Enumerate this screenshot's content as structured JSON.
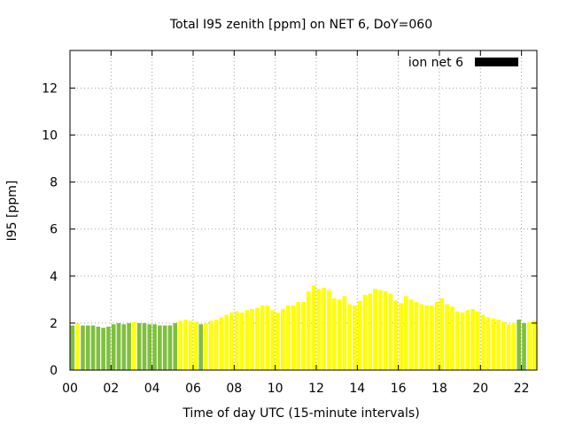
{
  "chart_data": {
    "type": "bar",
    "title": "Total I95 zenith [ppm] on NET 6, DoY=060",
    "xlabel": "Time of day UTC (15-minute intervals)",
    "ylabel": "I95 [ppm]",
    "xlim": [
      0,
      22.75
    ],
    "ylim": [
      0,
      13.6
    ],
    "x_ticks": [
      "00",
      "02",
      "04",
      "06",
      "08",
      "10",
      "12",
      "14",
      "16",
      "18",
      "20",
      "22"
    ],
    "y_ticks": [
      "0",
      "2",
      "4",
      "6",
      "8",
      "10",
      "12"
    ],
    "grid": true,
    "legend_position": "top-right",
    "series": [
      {
        "name": "ion net 6",
        "bar_width_hours": 0.2,
        "legend_color": "#000000",
        "x": [
          0.125,
          0.375,
          0.625,
          0.875,
          1.125,
          1.375,
          1.625,
          1.875,
          2.125,
          2.375,
          2.625,
          2.875,
          3.125,
          3.375,
          3.625,
          3.875,
          4.125,
          4.375,
          4.625,
          4.875,
          5.125,
          5.375,
          5.625,
          5.875,
          6.125,
          6.375,
          6.625,
          6.875,
          7.125,
          7.375,
          7.625,
          7.875,
          8.125,
          8.375,
          8.625,
          8.875,
          9.125,
          9.375,
          9.625,
          9.875,
          10.125,
          10.375,
          10.625,
          10.875,
          11.125,
          11.375,
          11.625,
          11.875,
          12.125,
          12.375,
          12.625,
          12.875,
          13.125,
          13.375,
          13.625,
          13.875,
          14.125,
          14.375,
          14.625,
          14.875,
          15.125,
          15.375,
          15.625,
          15.875,
          16.125,
          16.375,
          16.625,
          16.875,
          17.125,
          17.375,
          17.625,
          17.875,
          18.125,
          18.375,
          18.625,
          18.875,
          19.125,
          19.375,
          19.625,
          19.875,
          20.125,
          20.375,
          20.625,
          20.875,
          21.125,
          21.375,
          21.625,
          21.875,
          22.125,
          22.375,
          22.625
        ],
        "values": [
          1.9,
          2.0,
          1.9,
          1.9,
          1.9,
          1.85,
          1.8,
          1.85,
          1.95,
          2.0,
          1.95,
          2.0,
          2.05,
          2.0,
          2.0,
          1.95,
          1.95,
          1.9,
          1.9,
          1.9,
          2.0,
          2.1,
          2.15,
          2.1,
          2.05,
          1.95,
          2.0,
          2.1,
          2.15,
          2.25,
          2.35,
          2.45,
          2.5,
          2.45,
          2.55,
          2.6,
          2.65,
          2.75,
          2.75,
          2.55,
          2.45,
          2.6,
          2.75,
          2.75,
          2.9,
          2.9,
          3.35,
          3.6,
          3.45,
          3.5,
          3.4,
          3.05,
          3.0,
          3.15,
          2.8,
          2.75,
          2.95,
          3.2,
          3.25,
          3.45,
          3.4,
          3.35,
          3.25,
          2.95,
          2.85,
          3.15,
          3.0,
          2.9,
          2.8,
          2.75,
          2.75,
          2.9,
          3.05,
          2.8,
          2.7,
          2.5,
          2.45,
          2.55,
          2.6,
          2.5,
          2.35,
          2.25,
          2.2,
          2.15,
          2.05,
          1.95,
          2.0,
          2.15,
          2.0,
          2.05,
          2.1
        ],
        "colors": [
          "#7fbf3f",
          "#ffff00",
          "#7fbf3f",
          "#7fbf3f",
          "#7fbf3f",
          "#7fbf3f",
          "#7fbf3f",
          "#7fbf3f",
          "#7fbf3f",
          "#7fbf3f",
          "#7fbf3f",
          "#7fbf3f",
          "#ffff00",
          "#7fbf3f",
          "#7fbf3f",
          "#7fbf3f",
          "#7fbf3f",
          "#7fbf3f",
          "#7fbf3f",
          "#7fbf3f",
          "#7fbf3f",
          "#ffff00",
          "#ffff00",
          "#ffff00",
          "#ffff00",
          "#7fbf3f",
          "#ffff00",
          "#ffff00",
          "#ffff00",
          "#ffff00",
          "#ffff00",
          "#ffff00",
          "#ffff00",
          "#ffff00",
          "#ffff00",
          "#ffff00",
          "#ffff00",
          "#ffff00",
          "#ffff00",
          "#ffff00",
          "#ffff00",
          "#ffff00",
          "#ffff00",
          "#ffff00",
          "#ffff00",
          "#ffff00",
          "#ffff00",
          "#ffff00",
          "#ffff00",
          "#ffff00",
          "#ffff00",
          "#ffff00",
          "#ffff00",
          "#ffff00",
          "#ffff00",
          "#ffff00",
          "#ffff00",
          "#ffff00",
          "#ffff00",
          "#ffff00",
          "#ffff00",
          "#ffff00",
          "#ffff00",
          "#ffff00",
          "#ffff00",
          "#ffff00",
          "#ffff00",
          "#ffff00",
          "#ffff00",
          "#ffff00",
          "#ffff00",
          "#ffff00",
          "#ffff00",
          "#ffff00",
          "#ffff00",
          "#ffff00",
          "#ffff00",
          "#ffff00",
          "#ffff00",
          "#ffff00",
          "#ffff00",
          "#ffff00",
          "#ffff00",
          "#ffff00",
          "#ffff00",
          "#ffff00",
          "#ffff00",
          "#7fbf3f",
          "#7fbf3f",
          "#ffff00",
          "#ffff00"
        ]
      }
    ]
  }
}
